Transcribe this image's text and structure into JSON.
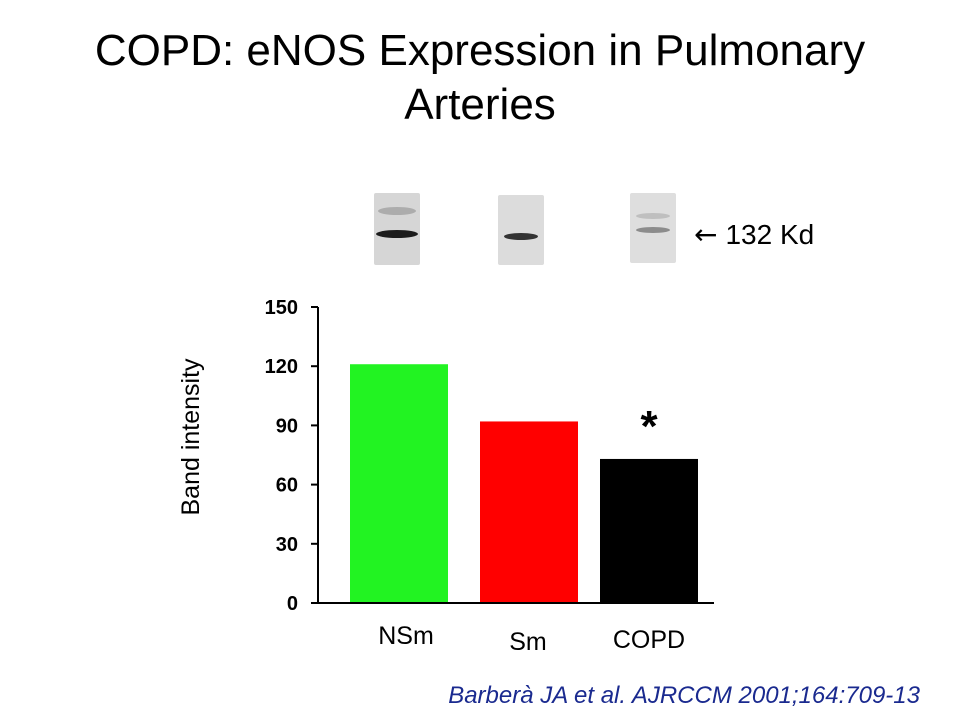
{
  "title_lines": [
    "COPD: eNOS Expression in Pulmonary",
    "Arteries"
  ],
  "blot": {
    "marker_arrow": "←",
    "marker_label": "132 Kd",
    "colors": {
      "strip_background": "#d9d9d9",
      "band": "#1c1c1c"
    }
  },
  "chart_data": {
    "type": "bar",
    "categories": [
      "NSm",
      "Sm",
      "COPD"
    ],
    "values": [
      121,
      92,
      73
    ],
    "colors": [
      "#22f322",
      "#ff0000",
      "#000000"
    ],
    "ylabel": "Band intensity",
    "ylim": [
      0,
      150
    ],
    "yticks": [
      0,
      30,
      60,
      90,
      120,
      150
    ],
    "grid": false,
    "annotations": [
      {
        "category": "COPD",
        "text": "*"
      }
    ]
  },
  "citation": "Barberà JA et al. AJRCCM 2001;164:709-13"
}
